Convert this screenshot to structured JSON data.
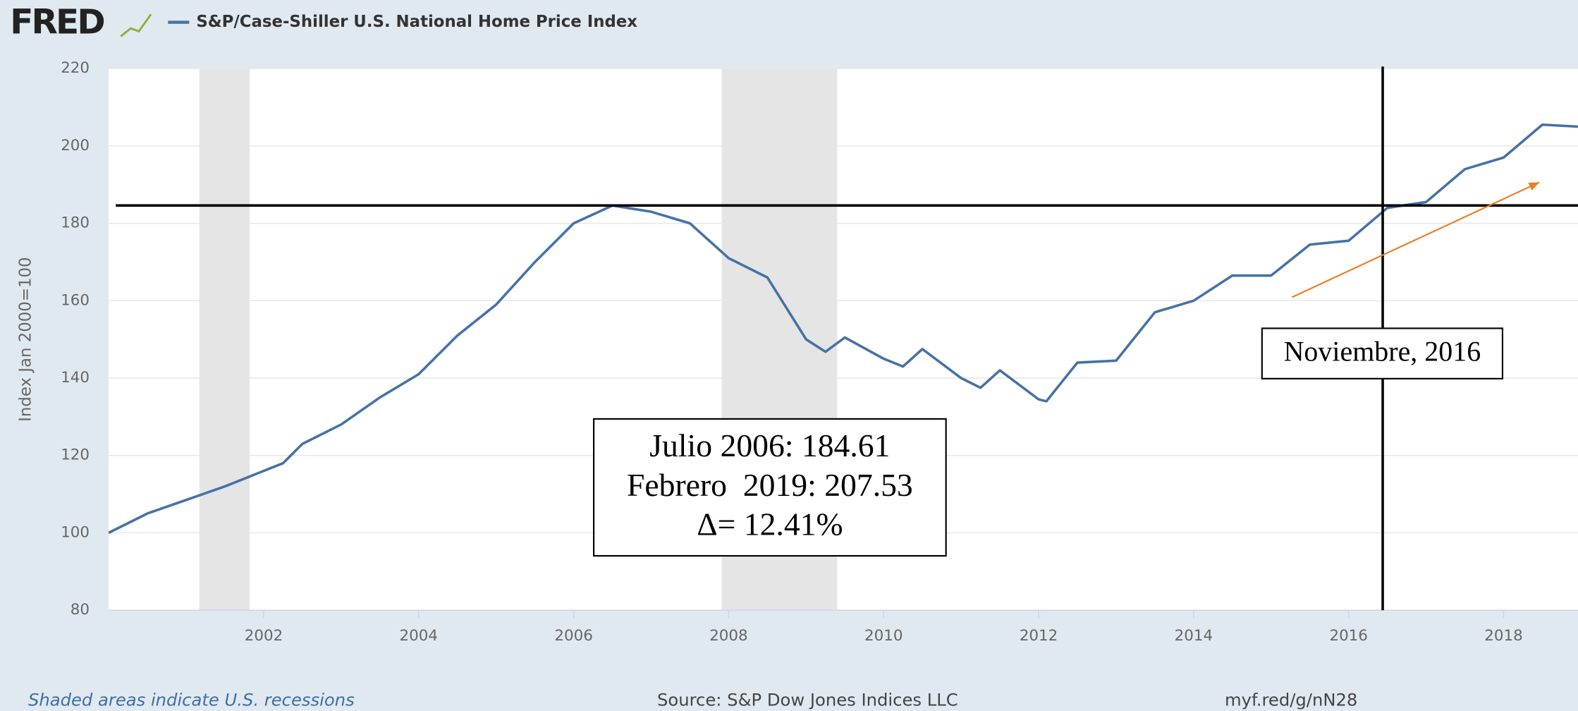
{
  "header": {
    "logo": "FRED"
  },
  "chart_data": {
    "type": "line",
    "series": [
      {
        "name": "S&P/Case-Shiller U.S. National Home Price Index",
        "color": "#4572a7",
        "values": [
          100,
          105,
          108.5,
          112,
          116,
          118,
          123,
          128,
          135,
          141,
          151,
          159,
          170,
          180,
          184.6,
          183,
          180,
          171,
          166,
          150,
          146.8,
          150.5,
          145,
          143,
          147.5,
          140,
          137.5,
          142,
          134.5,
          134,
          144,
          144.5,
          157,
          160,
          166.5,
          166.5,
          174.5,
          175.5,
          184,
          185.5,
          194,
          197,
          205.5,
          205
        ]
      }
    ],
    "x": [
      2000,
      2000.5,
      2001,
      2001.5,
      2002,
      2002.25,
      2002.5,
      2003,
      2003.5,
      2004,
      2004.5,
      2005,
      2005.5,
      2006,
      2006.5,
      2007,
      2007.5,
      2008,
      2008.5,
      2009,
      2009.25,
      2009.5,
      2010,
      2010.25,
      2010.5,
      2011,
      2011.25,
      2011.5,
      2012,
      2012.1,
      2012.5,
      2013,
      2013.5,
      2014,
      2014.5,
      2015,
      2015.5,
      2016,
      2016.5,
      2017,
      2017.5,
      2018,
      2018.5,
      2018.96
    ],
    "xlim": [
      2000,
      2018.96
    ],
    "xticks": [
      2002,
      2004,
      2006,
      2008,
      2010,
      2012,
      2014,
      2016,
      2018
    ],
    "ylim": [
      80,
      220
    ],
    "yticks": [
      80,
      100,
      120,
      140,
      160,
      180,
      200,
      220
    ],
    "ylabel": "Index Jan 2000=100",
    "grid": true,
    "recessions": [
      [
        2001.17,
        2001.82
      ],
      [
        2007.91,
        2009.4
      ]
    ],
    "hline": 184.61,
    "vline": 2016.44,
    "vline_label": "Noviembre, 2016",
    "arrow": {
      "x": [
        2015.27,
        2018.46
      ],
      "y": [
        160.9,
        190.6
      ],
      "color": "#ef7d22"
    },
    "annotation_box": [
      "Julio 2006: 184.61",
      "Febrero  2019: 207.53",
      "Δ= 12.41%"
    ]
  },
  "footer": {
    "note": "Shaded areas indicate U.S. recessions",
    "source": "Source: S&P Dow Jones Indices LLC",
    "link": "myf.red/g/nN28"
  }
}
